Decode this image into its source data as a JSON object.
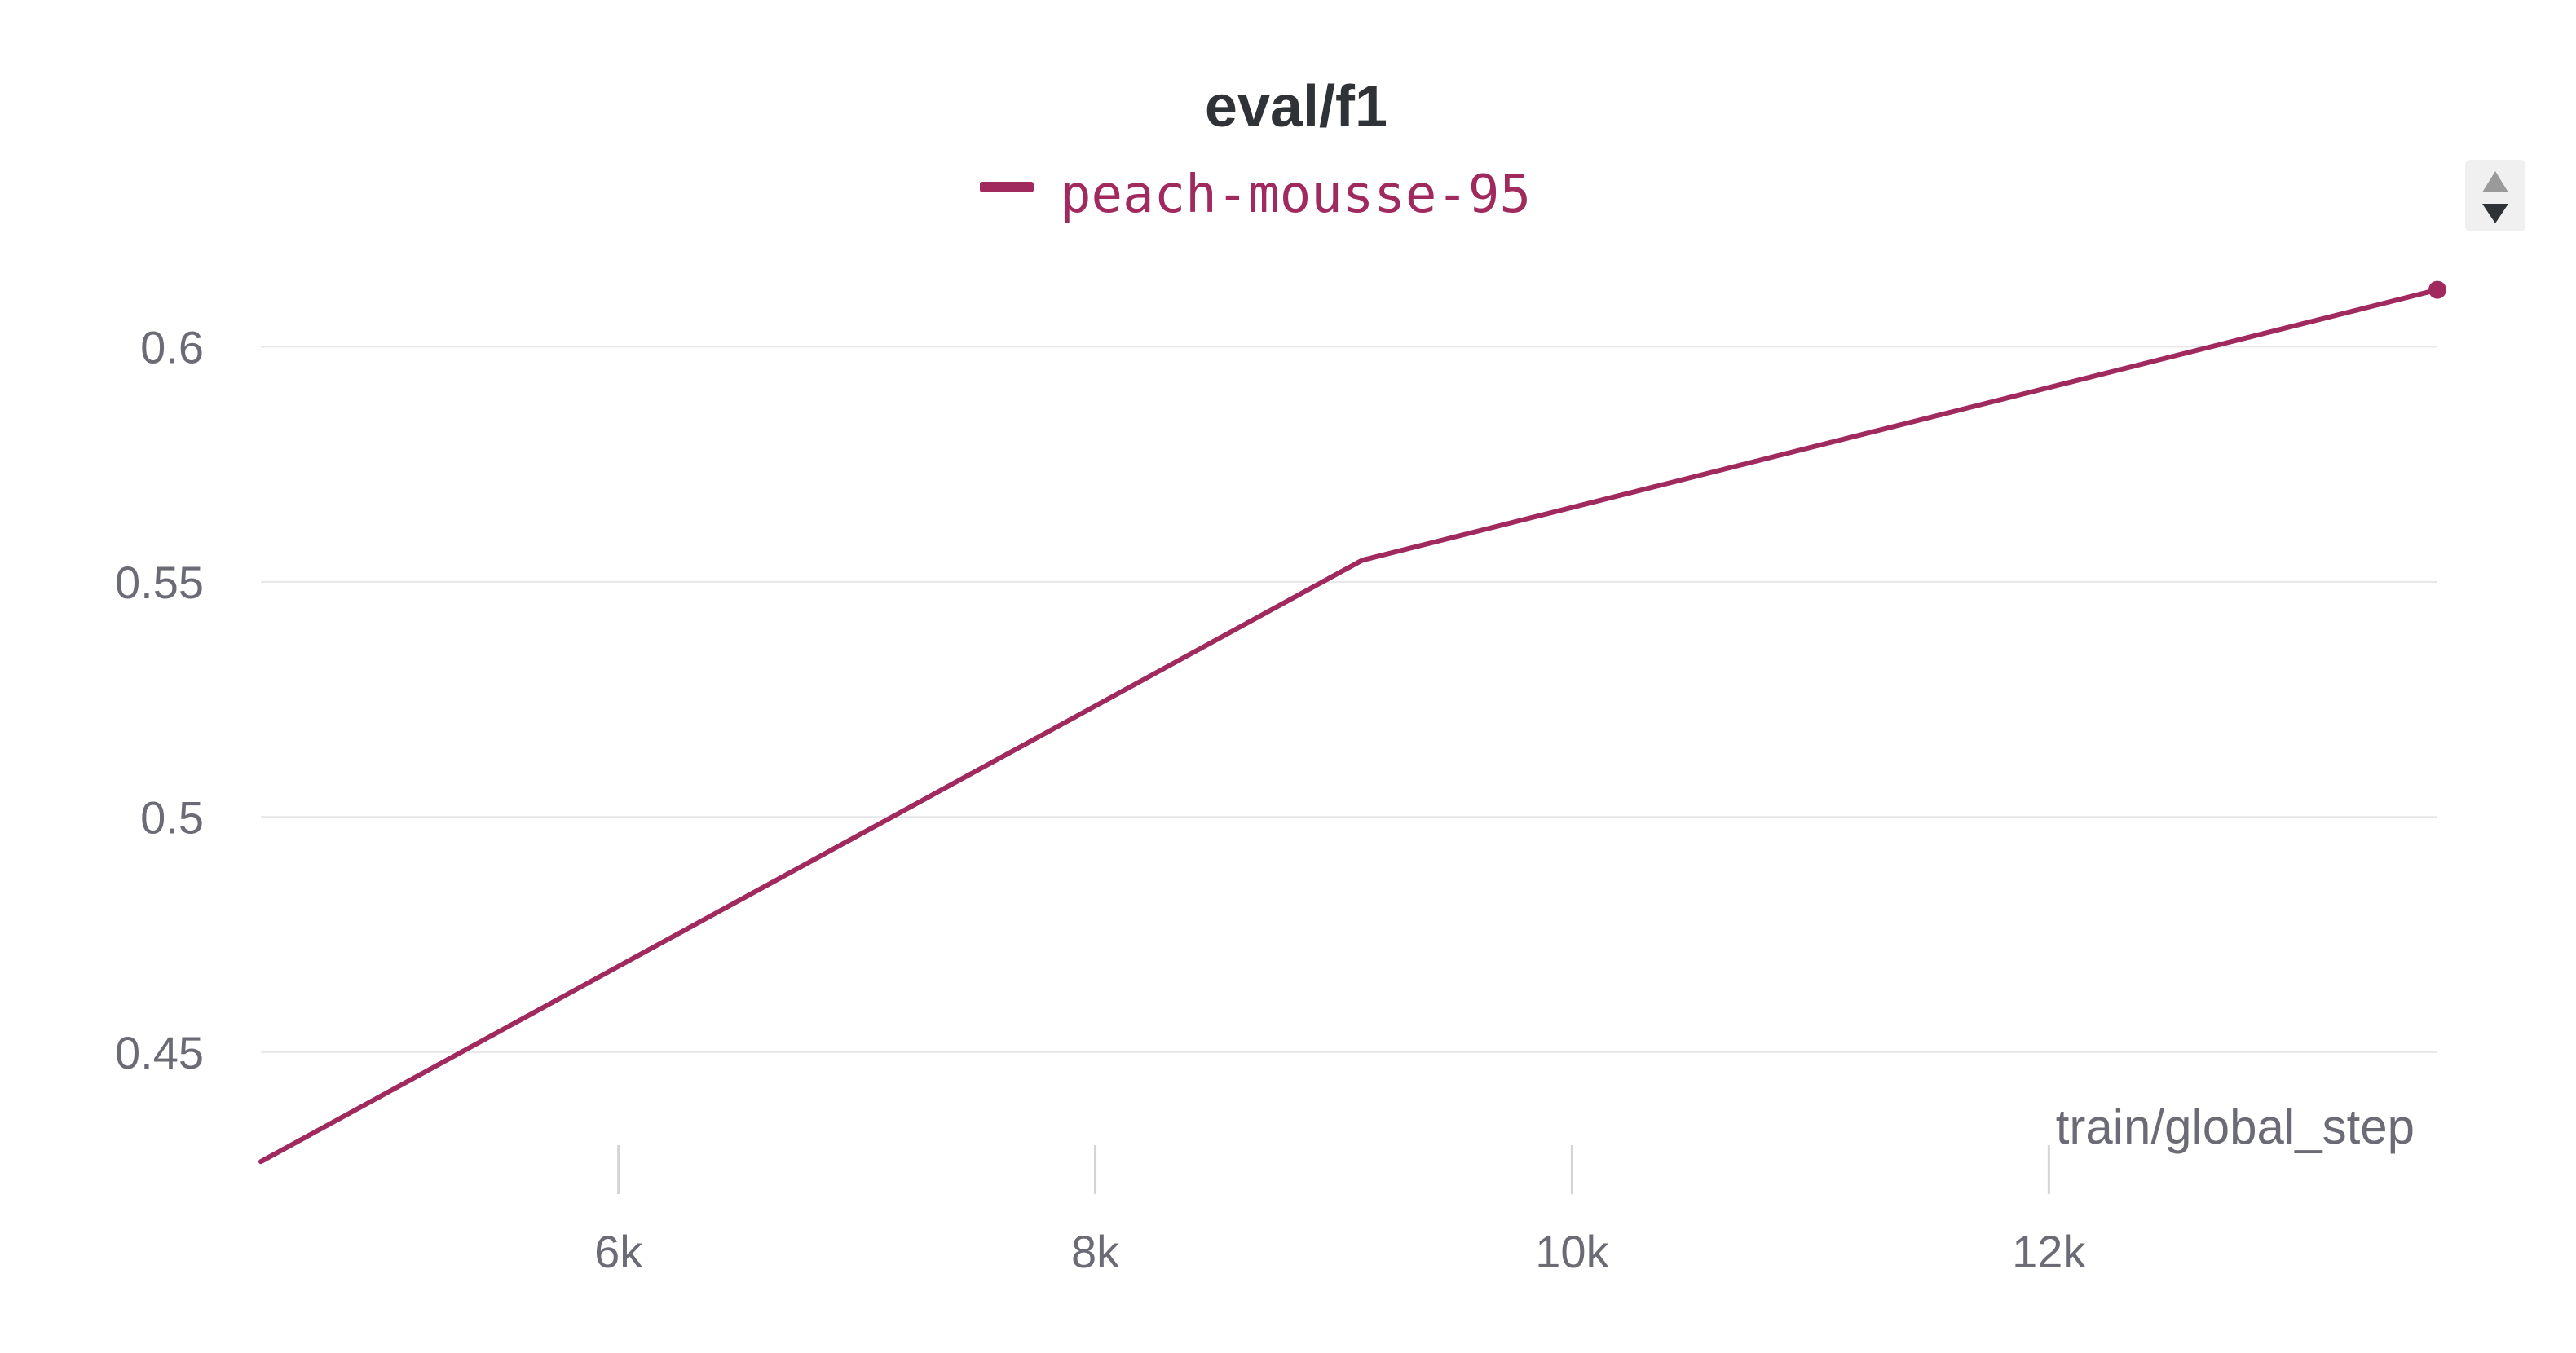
{
  "colors": {
    "series": "#a0295e",
    "grid": "#e6e6e9",
    "tick_mark": "#d4d4d8",
    "text": "#6b6b76",
    "title": "#2f3236",
    "scroll_bg": "#f0f0f0"
  },
  "legend_scroll": {
    "up_icon": "caret-up-icon",
    "down_icon": "caret-down-icon"
  },
  "chart_data": {
    "type": "line",
    "title": "eval/f1",
    "xlabel": "train/global_step",
    "ylabel": "",
    "xlim": [
      4500,
      13630
    ],
    "ylim": [
      0.425,
      0.62
    ],
    "x_ticks": [
      6000,
      8000,
      10000,
      12000
    ],
    "x_tick_labels": [
      "6k",
      "8k",
      "10k",
      "12k"
    ],
    "y_ticks": [
      0.45,
      0.5,
      0.55,
      0.6
    ],
    "y_tick_labels": [
      "0.45",
      "0.5",
      "0.55",
      "0.6"
    ],
    "grid": true,
    "legend": "top-center",
    "series": [
      {
        "name": "peach-mousse-95",
        "x": [
          4500,
          9120,
          13630
        ],
        "y": [
          0.4267,
          0.5546,
          0.6121
        ]
      }
    ]
  }
}
